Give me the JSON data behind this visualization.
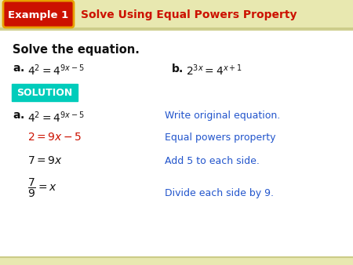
{
  "bg_color": "#fffff8",
  "content_bg": "#ffffff",
  "header_bg": "#e8e8b0",
  "example_box_color": "#cc1100",
  "example_box_border": "#e8a000",
  "example_box_text": "Example 1",
  "header_title": "Solve Using Equal Powers Property",
  "header_title_color": "#cc1100",
  "solve_text": "Solve the equation.",
  "solution_box_color": "#00ccbb",
  "solution_text": "SOLUTION",
  "blue_color": "#2255cc",
  "red_color": "#cc1100",
  "black_color": "#111111",
  "step2_color": "#cc1100",
  "header_line_color": "#cccc88",
  "bottom_stripe_color": "#e8e8b0"
}
